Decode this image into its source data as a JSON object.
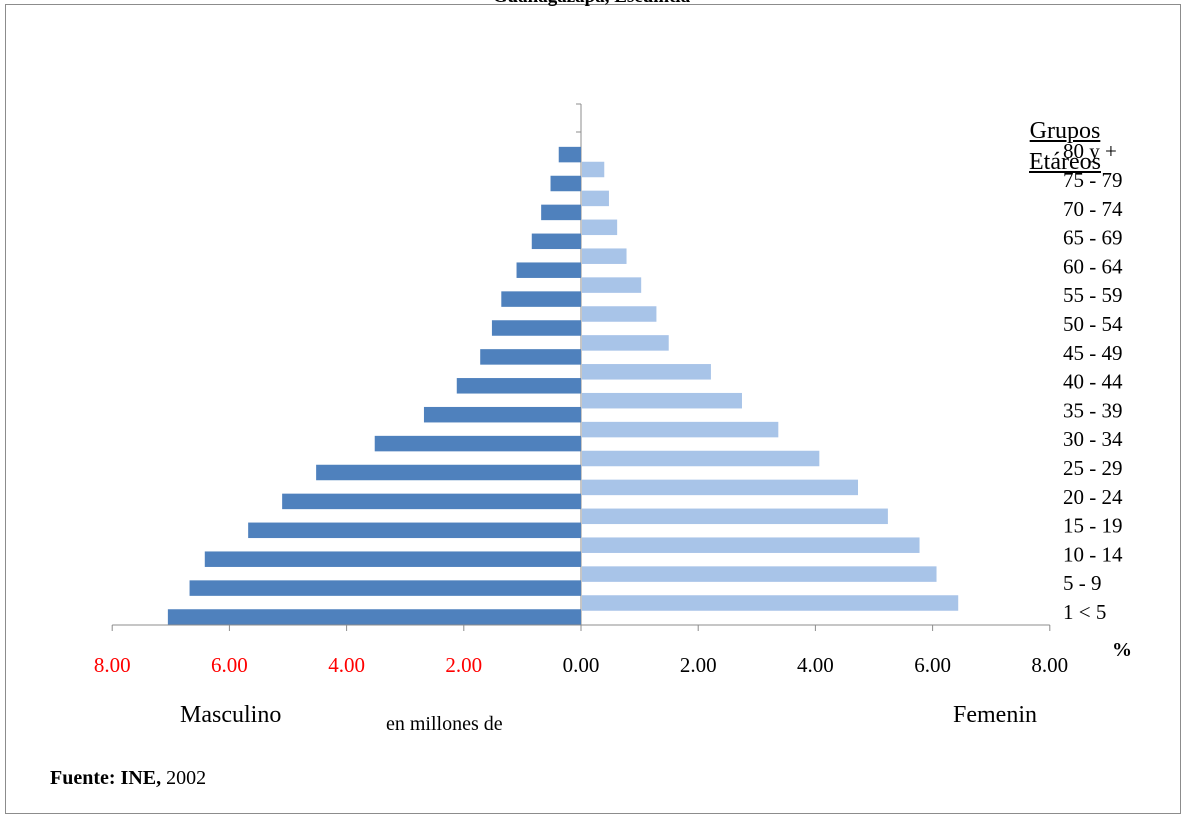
{
  "chart_data": {
    "type": "bar",
    "orientation": "horizontal",
    "title": "Guanagazapa, Escuintla",
    "legend_title": "Grupos Etáreos",
    "x_unit": "%",
    "left_label": "Masculino",
    "center_label": "en millones de",
    "right_label": "Femenin",
    "source_label": "Fuente: INE,",
    "source_year": "2002",
    "xlim": [
      -8,
      8
    ],
    "x_ticks": [
      -8,
      -6,
      -4,
      -2,
      0,
      2,
      4,
      6,
      8
    ],
    "x_tick_labels": [
      "8.00",
      "6.00",
      "4.00",
      "2.00",
      "0.00",
      "2.00",
      "4.00",
      "6.00",
      "8.00"
    ],
    "categories": [
      "1 <  5",
      "5 - 9",
      "10 - 14",
      "15 - 19",
      "20 - 24",
      "25 - 29",
      "30 - 34",
      "35 - 39",
      "40 - 44",
      "45 - 49",
      "50 - 54",
      "55 - 59",
      "60 - 64",
      "65 - 69",
      "70 - 74",
      "75 - 79",
      "80 y +"
    ],
    "series": [
      {
        "name": "Masculino",
        "color": "#4f81bd",
        "values": [
          7.05,
          6.68,
          6.42,
          5.68,
          5.1,
          4.52,
          3.52,
          2.68,
          2.12,
          1.72,
          1.52,
          1.36,
          1.1,
          0.84,
          0.68,
          0.52,
          0.38
        ]
      },
      {
        "name": "Femenin",
        "color": "#a8c4e8",
        "values": [
          6.42,
          6.05,
          5.76,
          5.22,
          4.71,
          4.05,
          3.35,
          2.73,
          2.2,
          1.48,
          1.27,
          1.01,
          0.76,
          0.6,
          0.46,
          0.38,
          0.0
        ]
      }
    ],
    "negative_tick_color": "#ff0000",
    "grid": false,
    "legend_position": "right"
  }
}
